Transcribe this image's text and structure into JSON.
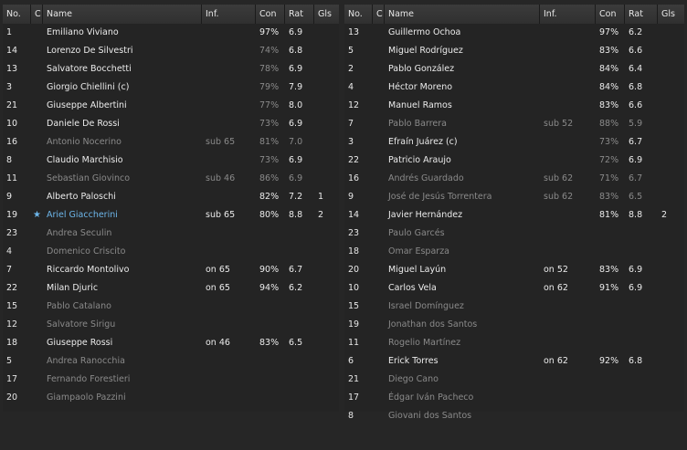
{
  "headers": {
    "no": "No.",
    "c": "C",
    "name": "Name",
    "inf": "Inf.",
    "con": "Con",
    "rat": "Rat",
    "gls": "Gls"
  },
  "left_team": [
    {
      "no": "1",
      "name": "Emiliano Viviano",
      "inf": "",
      "con": "97%",
      "rat": "6.9",
      "gls": "",
      "dim": false,
      "con_dim": false
    },
    {
      "no": "14",
      "name": "Lorenzo De Silvestri",
      "inf": "",
      "con": "74%",
      "rat": "6.8",
      "gls": "",
      "dim": false,
      "con_dim": true
    },
    {
      "no": "13",
      "name": "Salvatore Bocchetti",
      "inf": "",
      "con": "78%",
      "rat": "6.9",
      "gls": "",
      "dim": false,
      "con_dim": true
    },
    {
      "no": "3",
      "name": "Giorgio Chiellini (c)",
      "inf": "",
      "con": "79%",
      "rat": "7.9",
      "gls": "",
      "dim": false,
      "con_dim": true
    },
    {
      "no": "21",
      "name": "Giuseppe Albertini",
      "inf": "",
      "con": "77%",
      "rat": "8.0",
      "gls": "",
      "dim": false,
      "con_dim": true
    },
    {
      "no": "10",
      "name": "Daniele De Rossi",
      "inf": "",
      "con": "73%",
      "rat": "6.9",
      "gls": "",
      "dim": false,
      "con_dim": true
    },
    {
      "no": "16",
      "name": "Antonio Nocerino",
      "inf": "sub 65",
      "con": "81%",
      "rat": "7.0",
      "gls": "",
      "dim": true,
      "con_dim": false
    },
    {
      "no": "8",
      "name": "Claudio Marchisio",
      "inf": "",
      "con": "73%",
      "rat": "6.9",
      "gls": "",
      "dim": false,
      "con_dim": true
    },
    {
      "no": "11",
      "name": "Sebastian Giovinco",
      "inf": "sub 46",
      "con": "86%",
      "rat": "6.9",
      "gls": "",
      "dim": true,
      "con_dim": false
    },
    {
      "no": "9",
      "name": "Alberto Paloschi",
      "inf": "",
      "con": "82%",
      "rat": "7.2",
      "gls": "1",
      "dim": false,
      "con_dim": false
    },
    {
      "no": "19",
      "name": "Ariel Giaccherini",
      "inf": "sub 65",
      "con": "80%",
      "rat": "8.8",
      "gls": "2",
      "dim": false,
      "con_dim": false,
      "star": true
    },
    {
      "no": "23",
      "name": "Andrea Seculin",
      "inf": "",
      "con": "",
      "rat": "",
      "gls": "",
      "dim": true,
      "con_dim": false
    },
    {
      "no": "4",
      "name": "Domenico Criscito",
      "inf": "",
      "con": "",
      "rat": "",
      "gls": "",
      "dim": true,
      "con_dim": false
    },
    {
      "no": "7",
      "name": "Riccardo Montolivo",
      "inf": "on 65",
      "con": "90%",
      "rat": "6.7",
      "gls": "",
      "dim": false,
      "con_dim": false
    },
    {
      "no": "22",
      "name": "Milan Djuric",
      "inf": "on 65",
      "con": "94%",
      "rat": "6.2",
      "gls": "",
      "dim": false,
      "con_dim": false
    },
    {
      "no": "15",
      "name": "Pablo Catalano",
      "inf": "",
      "con": "",
      "rat": "",
      "gls": "",
      "dim": true,
      "con_dim": false
    },
    {
      "no": "12",
      "name": "Salvatore Sirigu",
      "inf": "",
      "con": "",
      "rat": "",
      "gls": "",
      "dim": true,
      "con_dim": false
    },
    {
      "no": "18",
      "name": "Giuseppe Rossi",
      "inf": "on 46",
      "con": "83%",
      "rat": "6.5",
      "gls": "",
      "dim": false,
      "con_dim": false
    },
    {
      "no": "5",
      "name": "Andrea Ranocchia",
      "inf": "",
      "con": "",
      "rat": "",
      "gls": "",
      "dim": true,
      "con_dim": false
    },
    {
      "no": "17",
      "name": "Fernando Forestieri",
      "inf": "",
      "con": "",
      "rat": "",
      "gls": "",
      "dim": true,
      "con_dim": false
    },
    {
      "no": "20",
      "name": "Giampaolo Pazzini",
      "inf": "",
      "con": "",
      "rat": "",
      "gls": "",
      "dim": true,
      "con_dim": false
    }
  ],
  "right_team": [
    {
      "no": "13",
      "name": "Guillermo Ochoa",
      "inf": "",
      "con": "97%",
      "rat": "6.2",
      "gls": "",
      "dim": false,
      "con_dim": false
    },
    {
      "no": "5",
      "name": "Miguel Rodríguez",
      "inf": "",
      "con": "83%",
      "rat": "6.6",
      "gls": "",
      "dim": false,
      "con_dim": false
    },
    {
      "no": "2",
      "name": "Pablo González",
      "inf": "",
      "con": "84%",
      "rat": "6.4",
      "gls": "",
      "dim": false,
      "con_dim": false
    },
    {
      "no": "4",
      "name": "Héctor Moreno",
      "inf": "",
      "con": "84%",
      "rat": "6.8",
      "gls": "",
      "dim": false,
      "con_dim": false
    },
    {
      "no": "12",
      "name": "Manuel Ramos",
      "inf": "",
      "con": "83%",
      "rat": "6.6",
      "gls": "",
      "dim": false,
      "con_dim": false
    },
    {
      "no": "7",
      "name": "Pablo Barrera",
      "inf": "sub 52",
      "con": "88%",
      "rat": "5.9",
      "gls": "",
      "dim": true,
      "con_dim": false
    },
    {
      "no": "3",
      "name": "Efraín Juárez (c)",
      "inf": "",
      "con": "73%",
      "rat": "6.7",
      "gls": "",
      "dim": false,
      "con_dim": true
    },
    {
      "no": "22",
      "name": "Patricio Araujo",
      "inf": "",
      "con": "72%",
      "rat": "6.9",
      "gls": "",
      "dim": false,
      "con_dim": true
    },
    {
      "no": "16",
      "name": "Andrés Guardado",
      "inf": "sub 62",
      "con": "71%",
      "rat": "6.7",
      "gls": "",
      "dim": true,
      "con_dim": true
    },
    {
      "no": "9",
      "name": "José de Jesús Torrentera",
      "inf": "sub 62",
      "con": "83%",
      "rat": "6.5",
      "gls": "",
      "dim": true,
      "con_dim": false
    },
    {
      "no": "14",
      "name": "Javier Hernández",
      "inf": "",
      "con": "81%",
      "rat": "8.8",
      "gls": "2",
      "dim": false,
      "con_dim": false
    },
    {
      "no": "23",
      "name": "Paulo Garcés",
      "inf": "",
      "con": "",
      "rat": "",
      "gls": "",
      "dim": true,
      "con_dim": false
    },
    {
      "no": "18",
      "name": "Omar Esparza",
      "inf": "",
      "con": "",
      "rat": "",
      "gls": "",
      "dim": true,
      "con_dim": false
    },
    {
      "no": "20",
      "name": "Miguel Layún",
      "inf": "on 52",
      "con": "83%",
      "rat": "6.9",
      "gls": "",
      "dim": false,
      "con_dim": false
    },
    {
      "no": "10",
      "name": "Carlos Vela",
      "inf": "on 62",
      "con": "91%",
      "rat": "6.9",
      "gls": "",
      "dim": false,
      "con_dim": false
    },
    {
      "no": "15",
      "name": "Israel Domínguez",
      "inf": "",
      "con": "",
      "rat": "",
      "gls": "",
      "dim": true,
      "con_dim": false
    },
    {
      "no": "19",
      "name": "Jonathan dos Santos",
      "inf": "",
      "con": "",
      "rat": "",
      "gls": "",
      "dim": true,
      "con_dim": false
    },
    {
      "no": "11",
      "name": "Rogelio Martínez",
      "inf": "",
      "con": "",
      "rat": "",
      "gls": "",
      "dim": true,
      "con_dim": false
    },
    {
      "no": "6",
      "name": "Erick Torres",
      "inf": "on 62",
      "con": "92%",
      "rat": "6.8",
      "gls": "",
      "dim": false,
      "con_dim": false
    },
    {
      "no": "21",
      "name": "Diego Cano",
      "inf": "",
      "con": "",
      "rat": "",
      "gls": "",
      "dim": true,
      "con_dim": false
    },
    {
      "no": "17",
      "name": "Édgar Iván Pacheco",
      "inf": "",
      "con": "",
      "rat": "",
      "gls": "",
      "dim": true,
      "con_dim": false
    },
    {
      "no": "8",
      "name": "Giovani dos Santos",
      "inf": "",
      "con": "",
      "rat": "",
      "gls": "",
      "dim": true,
      "con_dim": false
    }
  ],
  "colors": {
    "background": "#262626",
    "text": "#ececec",
    "dim_text": "#8a8a8a",
    "star": "#6db6ea"
  },
  "icons": {
    "star": "star-icon"
  }
}
